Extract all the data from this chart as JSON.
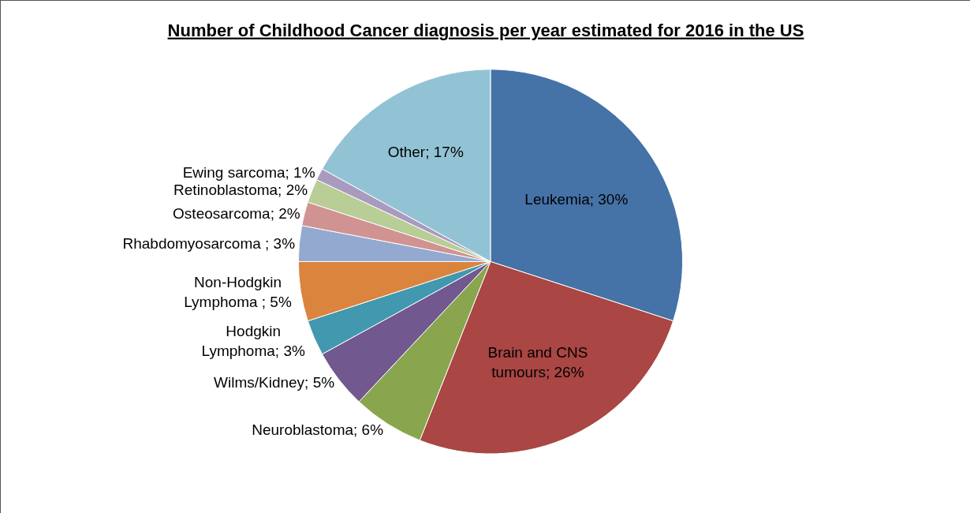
{
  "chart_data": {
    "type": "pie",
    "title": "Number of Childhood Cancer diagnosis per year estimated for 2016 in the US",
    "categories": [
      "Leukemia; 30%",
      "Brain and CNS tumours; 26%",
      "Neuroblastoma; 6%",
      "Wilms/Kidney; 5%",
      "Hodgkin Lymphoma; 3%",
      "Non-Hodgkin Lymphoma ; 5%",
      "Rhabdomyosarcoma ; 3%",
      "Osteosarcoma; 2%",
      "Retinoblastoma; 2%",
      "Ewing sarcoma; 1%",
      "Other; 17%"
    ],
    "values": [
      30,
      26,
      6,
      5,
      3,
      5,
      3,
      2,
      2,
      1,
      17
    ],
    "colors": [
      "#4572a7",
      "#aa4643",
      "#89a54e",
      "#71588f",
      "#4198af",
      "#db843d",
      "#93a9cf",
      "#d19392",
      "#b9cd96",
      "#a99bbd",
      "#92c3d5"
    ],
    "legend": false
  }
}
